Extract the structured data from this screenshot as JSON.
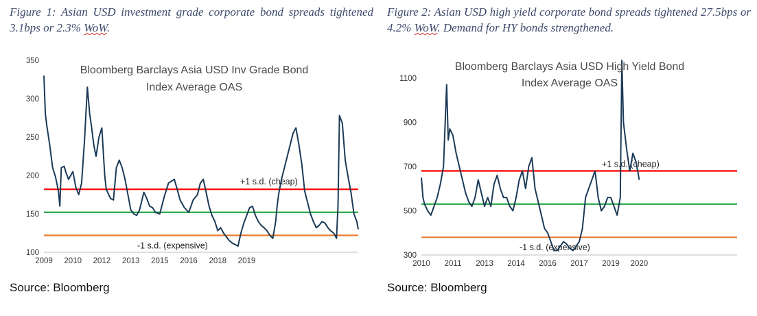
{
  "figures": [
    {
      "caption_main": "Figure 1: Asian USD investment grade corporate bond spreads tightened 3.1bps or 2.3% ",
      "caption_wow": "WoW",
      "caption_tail": ".",
      "source": "Source: Bloomberg"
    },
    {
      "caption_main": "Figure 2: Asian USD high yield corporate bond spreads tightened 27.5bps or 4.2% ",
      "caption_wow": "WoW",
      "caption_tail": ". Demand for HY bonds strengthened.",
      "source": "Source: Bloomberg"
    }
  ],
  "chart_data": [
    {
      "type": "line",
      "title": "Bloomberg Barclays Asia USD Inv Grade Bond Index Average OAS",
      "title_lines": [
        "Bloomberg Barclays Asia USD Inv Grade Bond",
        "Index Average OAS"
      ],
      "xlabel": "",
      "ylabel": "",
      "xlim": [
        2009.0,
        2019.85
      ],
      "ylim": [
        100,
        350
      ],
      "x_ticks": [
        {
          "value": 2009.0,
          "label": "2009"
        },
        {
          "value": 2010.0,
          "label": "2010"
        },
        {
          "value": 2011.0,
          "label": "2012"
        },
        {
          "value": 2012.0,
          "label": "2013"
        },
        {
          "value": 2013.0,
          "label": "2015"
        },
        {
          "value": 2014.0,
          "label": "2016"
        },
        {
          "value": 2015.0,
          "label": "2018"
        },
        {
          "value": 2016.0,
          "label": "2019"
        }
      ],
      "y_ticks": [
        100,
        150,
        200,
        250,
        300,
        350
      ],
      "grid": false,
      "colors": {
        "line": "#1b3a57",
        "upper": "#ff0000",
        "mean": "#27a844",
        "lower": "#ed7d31"
      },
      "reference_lines": [
        {
          "label": "+1 s.d. (cheap)",
          "value": 182,
          "color": "#ff0000"
        },
        {
          "value": 152,
          "color": "#27a844"
        },
        {
          "label": "-1 s.d. (expensive)",
          "value": 122,
          "color": "#ed7d31"
        }
      ],
      "series": [
        {
          "x": [
            2009.0,
            2009.05,
            2009.1,
            2009.2,
            2009.3,
            2009.4,
            2009.5,
            2009.55,
            2009.6,
            2009.7,
            2009.75,
            2009.85,
            2010.0,
            2010.1,
            2010.2,
            2010.3,
            2010.4,
            2010.5,
            2010.58,
            2010.65,
            2010.72,
            2010.8,
            2010.9,
            2011.0,
            2011.1,
            2011.15,
            2011.3,
            2011.4,
            2011.5,
            2011.6,
            2011.7,
            2011.8,
            2011.9,
            2012.0,
            2012.1,
            2012.2,
            2012.3,
            2012.45,
            2012.55,
            2012.65,
            2012.75,
            2012.85,
            2013.0,
            2013.15,
            2013.3,
            2013.5,
            2013.6,
            2013.7,
            2013.85,
            2014.0,
            2014.15,
            2014.3,
            2014.4,
            2014.5,
            2014.6,
            2014.7,
            2014.8,
            2014.9,
            2015.0,
            2015.1,
            2015.2,
            2015.3,
            2015.4,
            2015.5,
            2015.6,
            2015.7,
            2015.8,
            2015.9,
            2016.0,
            2016.1,
            2016.2,
            2016.3,
            2016.4,
            2016.5,
            2016.6,
            2016.7,
            2016.75,
            2016.8,
            2016.85,
            2016.9,
            2017.0,
            2017.05,
            2017.1,
            2017.2,
            2017.3,
            2017.4,
            2017.5,
            2017.6,
            2017.7,
            2017.8,
            2017.9,
            2018.0,
            2018.1,
            2018.2,
            2018.3,
            2018.4,
            2018.5,
            2018.6,
            2018.7,
            2018.8,
            2018.9,
            2019.0,
            2019.05,
            2019.1,
            2019.15,
            2019.2,
            2019.3,
            2019.4,
            2019.5,
            2019.6,
            2019.7,
            2019.8,
            2019.85
          ],
          "y": [
            330,
            280,
            265,
            240,
            210,
            198,
            180,
            160,
            210,
            212,
            205,
            195,
            205,
            185,
            175,
            190,
            245,
            315,
            280,
            262,
            240,
            225,
            250,
            262,
            200,
            182,
            170,
            168,
            210,
            220,
            210,
            195,
            175,
            155,
            150,
            148,
            155,
            178,
            170,
            160,
            158,
            152,
            150,
            172,
            190,
            195,
            182,
            168,
            158,
            152,
            168,
            175,
            190,
            195,
            178,
            160,
            148,
            140,
            128,
            132,
            125,
            120,
            115,
            112,
            110,
            108,
            125,
            138,
            148,
            158,
            160,
            148,
            140,
            135,
            132,
            128,
            125,
            122,
            120,
            118,
            140,
            160,
            175,
            195,
            210,
            225,
            240,
            255,
            262,
            240,
            215,
            180,
            165,
            150,
            140,
            132,
            135,
            140,
            138,
            132,
            128,
            125,
            122,
            118,
            160,
            278,
            268,
            220,
            198,
            178,
            150,
            140,
            130
          ]
        }
      ]
    },
    {
      "type": "line",
      "title": "Bloomberg Barclays Asia USD High Yield Bond Index Average OAS",
      "title_lines": [
        "Bloomberg  Barclays Asia USD High Yield Bond",
        "Index Average OAS"
      ],
      "xlabel": "",
      "ylabel": "",
      "xlim": [
        2010.0,
        2020.0
      ],
      "ylim": [
        300,
        1180
      ],
      "x_ticks": [
        {
          "value": 2010.0,
          "label": "2010"
        },
        {
          "value": 2011.0,
          "label": "2011"
        },
        {
          "value": 2012.0,
          "label": "2013"
        },
        {
          "value": 2013.0,
          "label": "2014"
        },
        {
          "value": 2014.0,
          "label": "2016"
        },
        {
          "value": 2015.0,
          "label": "2017"
        },
        {
          "value": 2016.0,
          "label": "2019"
        },
        {
          "value": 2016.9,
          "label": "2020"
        }
      ],
      "y_ticks": [
        300,
        500,
        700,
        900,
        1100
      ],
      "grid": false,
      "colors": {
        "line": "#1b3a57",
        "upper": "#ff0000",
        "mean": "#27a844",
        "lower": "#ed7d31"
      },
      "reference_lines": [
        {
          "label": "+1 s.d. (cheap)",
          "value": 680,
          "color": "#ff0000"
        },
        {
          "value": 530,
          "color": "#27a844"
        },
        {
          "label": "-1 s.d. (expensive)",
          "value": 380,
          "color": "#ed7d31"
        }
      ],
      "series": [
        {
          "x": [
            2010.0,
            2010.05,
            2010.1,
            2010.2,
            2010.3,
            2010.4,
            2010.5,
            2010.6,
            2010.7,
            2010.8,
            2010.85,
            2010.9,
            2011.0,
            2011.1,
            2011.2,
            2011.3,
            2011.4,
            2011.5,
            2011.6,
            2011.7,
            2011.8,
            2011.9,
            2012.0,
            2012.1,
            2012.2,
            2012.3,
            2012.4,
            2012.5,
            2012.6,
            2012.7,
            2012.8,
            2012.9,
            2013.0,
            2013.1,
            2013.2,
            2013.3,
            2013.4,
            2013.5,
            2013.6,
            2013.7,
            2013.8,
            2013.9,
            2014.0,
            2014.1,
            2014.2,
            2014.3,
            2014.4,
            2014.5,
            2014.6,
            2014.7,
            2014.8,
            2014.9,
            2015.0,
            2015.1,
            2015.2,
            2015.3,
            2015.4,
            2015.5,
            2015.6,
            2015.7,
            2015.8,
            2015.9,
            2016.0,
            2016.1,
            2016.2,
            2016.3,
            2016.35,
            2016.4,
            2016.5,
            2016.6,
            2016.7,
            2016.8,
            2016.9
          ],
          "y": [
            650,
            560,
            530,
            500,
            480,
            520,
            560,
            620,
            700,
            1070,
            820,
            870,
            840,
            760,
            700,
            640,
            580,
            540,
            520,
            560,
            640,
            580,
            520,
            560,
            520,
            620,
            660,
            600,
            560,
            560,
            520,
            500,
            560,
            640,
            680,
            600,
            700,
            740,
            600,
            540,
            480,
            420,
            400,
            360,
            320,
            320,
            340,
            360,
            350,
            330,
            320,
            340,
            360,
            420,
            560,
            600,
            640,
            680,
            560,
            500,
            520,
            560,
            560,
            520,
            480,
            560,
            1180,
            900,
            780,
            680,
            760,
            720,
            640
          ]
        }
      ]
    }
  ]
}
